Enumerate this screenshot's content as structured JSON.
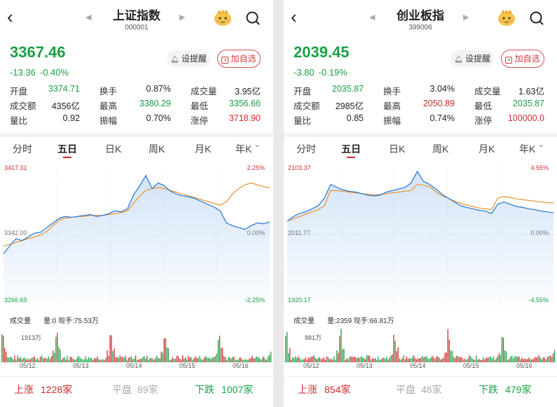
{
  "panels": [
    {
      "title": "上证指数",
      "code": "000001",
      "price": "3367.46",
      "change": "-13.36",
      "change_pct": "-0.40%",
      "remind_label": "设提醒",
      "fav_label": "加自选",
      "stats": [
        [
          {
            "label": "开盘",
            "value": "3374.71",
            "color": "green"
          },
          {
            "label": "换手",
            "value": "0.87%",
            "color": ""
          },
          {
            "label": "成交量",
            "value": "3.95亿",
            "color": ""
          }
        ],
        [
          {
            "label": "成交额",
            "value": "4356亿",
            "color": ""
          },
          {
            "label": "最高",
            "value": "3380.29",
            "color": "green"
          },
          {
            "label": "最低",
            "value": "3356.66",
            "color": "green"
          }
        ],
        [
          {
            "label": "量比",
            "value": "0.92",
            "color": ""
          },
          {
            "label": "振幅",
            "value": "0.70%",
            "color": ""
          },
          {
            "label": "涨停",
            "value": "3718.90",
            "color": "red"
          }
        ]
      ],
      "tabs": [
        "分时",
        "五日",
        "日K",
        "周K",
        "月K",
        "年K"
      ],
      "chart_labels": {
        "top": "3417.31",
        "mid": "3342.00",
        "bot": "3266.69",
        "top_pct": "2.25%",
        "mid_pct": "0.00%",
        "bot_pct": "-2.25%"
      },
      "vol_title": "成交量",
      "vol_info": "量:0 现手:75.53万",
      "vol_max": "1913万",
      "dates": [
        "05/12",
        "05/13",
        "05/14",
        "05/15",
        "05/16"
      ],
      "up_label": "上涨",
      "up_count": "1228家",
      "flat_label": "平盘",
      "flat_count": "89家",
      "down_label": "下跌",
      "down_count": "1007家"
    },
    {
      "title": "创业板指",
      "code": "399006",
      "price": "2039.45",
      "change": "-3.80",
      "change_pct": "-0.19%",
      "remind_label": "设提醒",
      "fav_label": "加自选",
      "stats": [
        [
          {
            "label": "开盘",
            "value": "2035.87",
            "color": "green"
          },
          {
            "label": "换手",
            "value": "3.04%",
            "color": ""
          },
          {
            "label": "成交量",
            "value": "1.63亿",
            "color": ""
          }
        ],
        [
          {
            "label": "成交额",
            "value": "2985亿",
            "color": ""
          },
          {
            "label": "最高",
            "value": "2050.89",
            "color": "red"
          },
          {
            "label": "最低",
            "value": "2035.87",
            "color": "green"
          }
        ],
        [
          {
            "label": "量比",
            "value": "0.85",
            "color": ""
          },
          {
            "label": "振幅",
            "value": "0.74%",
            "color": ""
          },
          {
            "label": "涨停",
            "value": "100000.0",
            "color": "red"
          }
        ]
      ],
      "tabs": [
        "分时",
        "五日",
        "日K",
        "周K",
        "月K",
        "年K"
      ],
      "chart_labels": {
        "top": "2103.37",
        "mid": "2011.77",
        "bot": "1920.17",
        "top_pct": "4.55%",
        "mid_pct": "0.00%",
        "bot_pct": "-4.55%"
      },
      "vol_title": "成交量",
      "vol_info": "量:2359 现手:66.81万",
      "vol_max": "881万",
      "dates": [
        "05/12",
        "05/13",
        "05/14",
        "05/15",
        "05/16"
      ],
      "up_label": "上涨",
      "up_count": "854家",
      "flat_label": "平盘",
      "flat_count": "48家",
      "down_label": "下跌",
      "down_count": "479家"
    }
  ],
  "colors": {
    "up": "#d02c2c",
    "down": "#1aa045",
    "price_line": "#2f7fd6",
    "avg_line": "#e8902a"
  },
  "chart_data": [
    {
      "type": "line",
      "ylim": [
        3266.69,
        3417.31
      ],
      "series": [
        {
          "values": [
            3322,
            3330,
            3338,
            3336,
            3340,
            3344,
            3345,
            3350,
            3355,
            3360,
            3362,
            3361,
            3362,
            3363,
            3364,
            3362,
            3363,
            3365,
            3368,
            3367,
            3370,
            3385,
            3395,
            3406,
            3392,
            3398,
            3395,
            3389,
            3386,
            3384,
            3383,
            3381,
            3378,
            3375,
            3372,
            3368,
            3355,
            3352,
            3350,
            3348,
            3352,
            3355,
            3354,
            3356
          ]
        },
        {
          "values": [
            3330,
            3332,
            3334,
            3336,
            3338,
            3340,
            3342,
            3346,
            3352,
            3358,
            3360,
            3361,
            3362,
            3362,
            3363,
            3363,
            3363,
            3364,
            3365,
            3366,
            3368,
            3376,
            3384,
            3390,
            3392,
            3393,
            3392,
            3390,
            3388,
            3386,
            3384,
            3382,
            3380,
            3378,
            3376,
            3374,
            3378,
            3386,
            3392,
            3396,
            3398,
            3396,
            3394,
            3393
          ]
        }
      ]
    },
    {
      "type": "line",
      "ylim": [
        1920.17,
        2103.37
      ],
      "series": [
        {
          "values": [
            2030,
            2036,
            2040,
            2042,
            2046,
            2050,
            2060,
            2078,
            2074,
            2071,
            2069,
            2068,
            2066,
            2064,
            2063,
            2064,
            2068,
            2070,
            2072,
            2074,
            2080,
            2095,
            2082,
            2078,
            2072,
            2065,
            2060,
            2055,
            2050,
            2048,
            2046,
            2044,
            2043,
            2040,
            2052,
            2055,
            2052,
            2049,
            2048,
            2046,
            2045,
            2043,
            2042,
            2041
          ]
        },
        {
          "values": [
            2030,
            2033,
            2036,
            2039,
            2042,
            2045,
            2050,
            2070,
            2070,
            2069,
            2068,
            2067,
            2066,
            2065,
            2064,
            2065,
            2066,
            2067,
            2068,
            2069,
            2070,
            2078,
            2077,
            2075,
            2068,
            2063,
            2060,
            2056,
            2053,
            2051,
            2049,
            2047,
            2046,
            2045,
            2060,
            2062,
            2061,
            2059,
            2058,
            2057,
            2056,
            2055,
            2054,
            2054
          ]
        }
      ]
    }
  ]
}
